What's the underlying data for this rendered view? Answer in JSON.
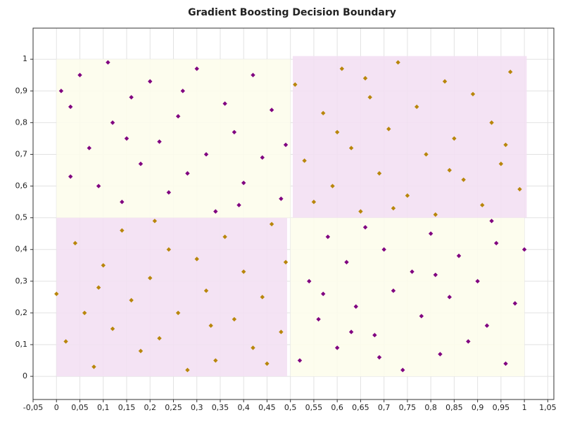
{
  "chart_data": {
    "type": "scatter",
    "title": "Gradient Boosting Decision Boundary",
    "xlim": [
      -0.05,
      1.063
    ],
    "ylim": [
      -0.073,
      1.098
    ],
    "grid": true,
    "xticks": [
      {
        "value": -0.05,
        "label": "-0,05"
      },
      0,
      {
        "value": 0.05,
        "label": "0,05"
      },
      {
        "value": 0.1,
        "label": "0,1"
      },
      {
        "value": 0.15,
        "label": "0,15"
      },
      {
        "value": 0.2,
        "label": "0,2"
      },
      {
        "value": 0.25,
        "label": "0,25"
      },
      {
        "value": 0.3,
        "label": "0,3"
      },
      {
        "value": 0.35,
        "label": "0,35"
      },
      {
        "value": 0.4,
        "label": "0,4"
      },
      {
        "value": 0.45,
        "label": "0,45"
      },
      {
        "value": 0.5,
        "label": "0,5"
      },
      {
        "value": 0.55,
        "label": "0,55"
      },
      {
        "value": 0.6,
        "label": "0,6"
      },
      {
        "value": 0.65,
        "label": "0,65"
      },
      {
        "value": 0.7,
        "label": "0,7"
      },
      {
        "value": 0.75,
        "label": "0,75"
      },
      {
        "value": 0.8,
        "label": "0,8"
      },
      {
        "value": 0.85,
        "label": "0,85"
      },
      {
        "value": 0.9,
        "label": "0,9"
      },
      {
        "value": 0.95,
        "label": "0,95"
      },
      1,
      {
        "value": 1.05,
        "label": "1,05"
      }
    ],
    "yticks": [
      0,
      {
        "value": 0.1,
        "label": "0,1"
      },
      {
        "value": 0.2,
        "label": "0,2"
      },
      {
        "value": 0.3,
        "label": "0,3"
      },
      {
        "value": 0.4,
        "label": "0,4"
      },
      {
        "value": 0.5,
        "label": "0,5"
      },
      {
        "value": 0.6,
        "label": "0,6"
      },
      {
        "value": 0.7,
        "label": "0,7"
      },
      {
        "value": 0.8,
        "label": "0,8"
      },
      {
        "value": 0.9,
        "label": "0,9"
      },
      1
    ],
    "regions": [
      {
        "x": [
          0,
          0.5
        ],
        "y": [
          0.5,
          1
        ],
        "color": "#fdfdec"
      },
      {
        "x": [
          0.5,
          1
        ],
        "y": [
          0,
          0.5
        ],
        "color": "#fdfdec"
      },
      {
        "x": [
          0,
          0.493
        ],
        "y": [
          0,
          0.5
        ],
        "color": "#f3e0f3"
      },
      {
        "x": [
          0.505,
          1.005
        ],
        "y": [
          0.5,
          1.01
        ],
        "color": "#f3e0f3"
      }
    ],
    "series": [
      {
        "color": "#800080",
        "x": [
          0.01,
          0.03,
          0.05,
          0.07,
          0.09,
          0.11,
          0.12,
          0.14,
          0.16,
          0.18,
          0.2,
          0.22,
          0.24,
          0.26,
          0.28,
          0.3,
          0.32,
          0.34,
          0.36,
          0.38,
          0.4,
          0.42,
          0.44,
          0.46,
          0.48,
          0.03,
          0.15,
          0.27,
          0.39,
          0.49,
          0.52,
          0.54,
          0.56,
          0.58,
          0.6,
          0.62,
          0.64,
          0.66,
          0.68,
          0.7,
          0.72,
          0.74,
          0.76,
          0.78,
          0.8,
          0.82,
          0.84,
          0.86,
          0.88,
          0.9,
          0.92,
          0.94,
          0.96,
          0.98,
          1.0,
          0.57,
          0.69,
          0.81,
          0.93,
          0.63
        ],
        "values": [
          0.9,
          0.85,
          0.95,
          0.72,
          0.6,
          0.99,
          0.8,
          0.55,
          0.88,
          0.67,
          0.93,
          0.74,
          0.58,
          0.82,
          0.64,
          0.97,
          0.7,
          0.52,
          0.86,
          0.77,
          0.61,
          0.95,
          0.69,
          0.84,
          0.56,
          0.63,
          0.75,
          0.9,
          0.54,
          0.73,
          0.05,
          0.3,
          0.18,
          0.44,
          0.09,
          0.36,
          0.22,
          0.47,
          0.13,
          0.4,
          0.27,
          0.02,
          0.33,
          0.19,
          0.45,
          0.07,
          0.25,
          0.38,
          0.11,
          0.3,
          0.16,
          0.42,
          0.04,
          0.23,
          0.4,
          0.26,
          0.06,
          0.32,
          0.49,
          0.14
        ]
      },
      {
        "color": "#b8860b",
        "x": [
          0.0,
          0.02,
          0.04,
          0.06,
          0.08,
          0.1,
          0.12,
          0.14,
          0.16,
          0.18,
          0.2,
          0.22,
          0.24,
          0.26,
          0.28,
          0.3,
          0.32,
          0.34,
          0.36,
          0.38,
          0.4,
          0.42,
          0.44,
          0.46,
          0.48,
          0.49,
          0.09,
          0.21,
          0.33,
          0.45,
          0.51,
          0.53,
          0.55,
          0.57,
          0.59,
          0.61,
          0.63,
          0.65,
          0.67,
          0.69,
          0.71,
          0.73,
          0.75,
          0.77,
          0.79,
          0.81,
          0.83,
          0.85,
          0.87,
          0.89,
          0.91,
          0.93,
          0.95,
          0.97,
          0.99,
          0.6,
          0.72,
          0.84,
          0.96,
          0.66
        ],
        "values": [
          0.26,
          0.11,
          0.42,
          0.2,
          0.03,
          0.35,
          0.15,
          0.46,
          0.24,
          0.08,
          0.31,
          0.12,
          0.4,
          0.2,
          0.02,
          0.37,
          0.27,
          0.05,
          0.44,
          0.18,
          0.33,
          0.09,
          0.25,
          0.48,
          0.14,
          0.36,
          0.28,
          0.49,
          0.16,
          0.04,
          0.92,
          0.68,
          0.55,
          0.83,
          0.6,
          0.97,
          0.72,
          0.52,
          0.88,
          0.64,
          0.78,
          0.99,
          0.57,
          0.85,
          0.7,
          0.51,
          0.93,
          0.75,
          0.62,
          0.89,
          0.54,
          0.8,
          0.67,
          0.96,
          0.59,
          0.77,
          0.53,
          0.65,
          0.73,
          0.94
        ]
      }
    ]
  }
}
